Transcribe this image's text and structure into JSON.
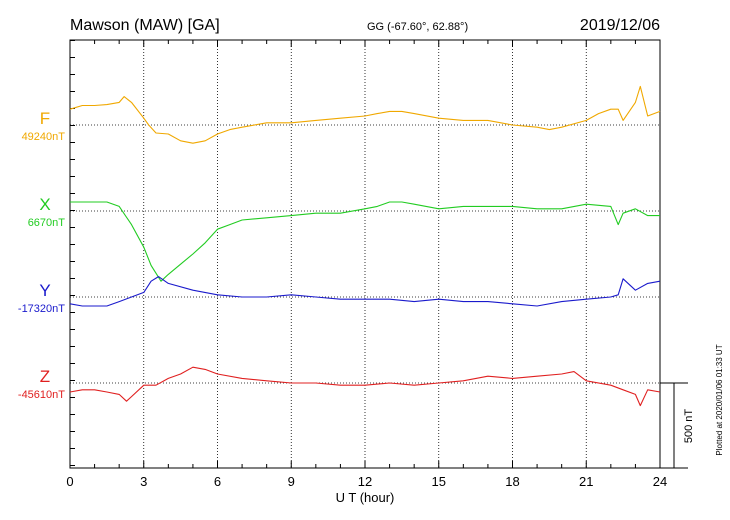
{
  "header": {
    "station": "Mawson (MAW)  [GA]",
    "coords": "GG (-67.60°,  62.88°)",
    "date": "2019/12/06"
  },
  "footer": {
    "plotted": "Plotted at 2020/01/06 01:33 UT"
  },
  "chart_data": {
    "type": "line",
    "xlabel": "U T (hour)",
    "xlim": [
      0,
      24
    ],
    "xticks": [
      "0",
      "3",
      "6",
      "9",
      "12",
      "15",
      "18",
      "21",
      "24"
    ],
    "scale_bar": {
      "label": "500 nT",
      "value_nT": 500
    },
    "series": [
      {
        "name": "F",
        "baseline_label": "49240nT",
        "baseline": 49240,
        "color": "#f0a800",
        "points": [
          [
            0,
            49333
          ],
          [
            0.5,
            49355
          ],
          [
            1,
            49355
          ],
          [
            1.5,
            49360
          ],
          [
            2,
            49373
          ],
          [
            2.2,
            49407
          ],
          [
            2.5,
            49373
          ],
          [
            3,
            49280
          ],
          [
            3.2,
            49240
          ],
          [
            3.5,
            49193
          ],
          [
            4,
            49187
          ],
          [
            4.5,
            49147
          ],
          [
            5,
            49133
          ],
          [
            5.5,
            49147
          ],
          [
            6,
            49187
          ],
          [
            6.5,
            49213
          ],
          [
            7,
            49227
          ],
          [
            8,
            49253
          ],
          [
            9,
            49253
          ],
          [
            10,
            49267
          ],
          [
            11,
            49280
          ],
          [
            12,
            49293
          ],
          [
            12.5,
            49307
          ],
          [
            13,
            49320
          ],
          [
            13.5,
            49320
          ],
          [
            14,
            49307
          ],
          [
            15,
            49280
          ],
          [
            16,
            49267
          ],
          [
            17,
            49267
          ],
          [
            18,
            49240
          ],
          [
            19,
            49227
          ],
          [
            19.5,
            49213
          ],
          [
            20,
            49227
          ],
          [
            21,
            49267
          ],
          [
            21.5,
            49307
          ],
          [
            22,
            49333
          ],
          [
            22.3,
            49333
          ],
          [
            22.5,
            49267
          ],
          [
            23,
            49373
          ],
          [
            23.2,
            49467
          ],
          [
            23.5,
            49293
          ],
          [
            24,
            49320
          ]
        ]
      },
      {
        "name": "X",
        "baseline_label": "6670nT",
        "baseline": 6670,
        "color": "#22cc22",
        "points": [
          [
            0,
            6723
          ],
          [
            0.5,
            6723
          ],
          [
            1,
            6723
          ],
          [
            1.5,
            6723
          ],
          [
            2,
            6697
          ],
          [
            2.5,
            6590
          ],
          [
            3,
            6457
          ],
          [
            3.3,
            6350
          ],
          [
            3.7,
            6257
          ],
          [
            4,
            6297
          ],
          [
            4.5,
            6357
          ],
          [
            5,
            6417
          ],
          [
            5.5,
            6483
          ],
          [
            6,
            6563
          ],
          [
            6.5,
            6590
          ],
          [
            7,
            6617
          ],
          [
            8,
            6630
          ],
          [
            9,
            6643
          ],
          [
            10,
            6657
          ],
          [
            11,
            6657
          ],
          [
            12,
            6683
          ],
          [
            12.5,
            6697
          ],
          [
            13,
            6723
          ],
          [
            13.5,
            6723
          ],
          [
            14,
            6710
          ],
          [
            15,
            6683
          ],
          [
            16,
            6697
          ],
          [
            17,
            6697
          ],
          [
            18,
            6697
          ],
          [
            19,
            6683
          ],
          [
            20,
            6683
          ],
          [
            21,
            6710
          ],
          [
            22,
            6697
          ],
          [
            22.3,
            6590
          ],
          [
            22.5,
            6657
          ],
          [
            23,
            6683
          ],
          [
            23.5,
            6643
          ],
          [
            24,
            6643
          ]
        ]
      },
      {
        "name": "Y",
        "baseline_label": "-17320nT",
        "baseline": -17320,
        "color": "#1a1acc",
        "points": [
          [
            0,
            -17360
          ],
          [
            0.5,
            -17373
          ],
          [
            1,
            -17373
          ],
          [
            1.5,
            -17373
          ],
          [
            2,
            -17347
          ],
          [
            2.5,
            -17320
          ],
          [
            3,
            -17293
          ],
          [
            3.3,
            -17227
          ],
          [
            3.6,
            -17200
          ],
          [
            4,
            -17240
          ],
          [
            5,
            -17280
          ],
          [
            6,
            -17307
          ],
          [
            7,
            -17320
          ],
          [
            8,
            -17320
          ],
          [
            9,
            -17307
          ],
          [
            10,
            -17320
          ],
          [
            11,
            -17333
          ],
          [
            12,
            -17333
          ],
          [
            13,
            -17333
          ],
          [
            14,
            -17347
          ],
          [
            15,
            -17333
          ],
          [
            16,
            -17347
          ],
          [
            17,
            -17347
          ],
          [
            18,
            -17360
          ],
          [
            19,
            -17373
          ],
          [
            20,
            -17347
          ],
          [
            21,
            -17333
          ],
          [
            22,
            -17320
          ],
          [
            22.3,
            -17307
          ],
          [
            22.5,
            -17213
          ],
          [
            23,
            -17280
          ],
          [
            23.5,
            -17240
          ],
          [
            24,
            -17227
          ]
        ]
      },
      {
        "name": "Z",
        "baseline_label": "-45610nT",
        "baseline": -45610,
        "color": "#e02020",
        "points": [
          [
            0,
            -45663
          ],
          [
            0.5,
            -45650
          ],
          [
            1,
            -45650
          ],
          [
            1.5,
            -45663
          ],
          [
            2,
            -45677
          ],
          [
            2.3,
            -45717
          ],
          [
            2.5,
            -45690
          ],
          [
            3,
            -45623
          ],
          [
            3.5,
            -45623
          ],
          [
            4,
            -45583
          ],
          [
            4.5,
            -45557
          ],
          [
            5,
            -45517
          ],
          [
            5.5,
            -45530
          ],
          [
            6,
            -45557
          ],
          [
            7,
            -45583
          ],
          [
            8,
            -45597
          ],
          [
            9,
            -45610
          ],
          [
            10,
            -45610
          ],
          [
            11,
            -45623
          ],
          [
            12,
            -45623
          ],
          [
            13,
            -45610
          ],
          [
            14,
            -45623
          ],
          [
            15,
            -45610
          ],
          [
            16,
            -45597
          ],
          [
            17,
            -45570
          ],
          [
            18,
            -45583
          ],
          [
            19,
            -45570
          ],
          [
            20,
            -45557
          ],
          [
            20.5,
            -45543
          ],
          [
            21,
            -45597
          ],
          [
            22,
            -45623
          ],
          [
            22.5,
            -45650
          ],
          [
            23,
            -45677
          ],
          [
            23.2,
            -45743
          ],
          [
            23.5,
            -45650
          ],
          [
            24,
            -45663
          ]
        ]
      }
    ]
  }
}
